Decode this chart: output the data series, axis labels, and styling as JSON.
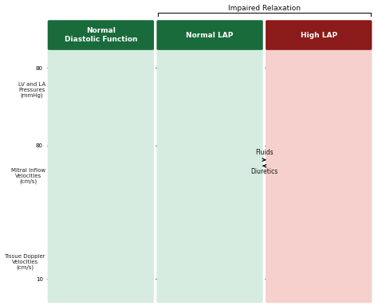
{
  "title_top": "Impaired Relaxation",
  "col_titles": [
    "Normal\nDiastolic Function",
    "Normal LAP",
    "High LAP"
  ],
  "col_bg_colors": [
    "#d6ece1",
    "#d6ece1",
    "#f5d0cc"
  ],
  "col_header_colors": [
    "#1a6b3c",
    "#1a6b3c",
    "#8b1a1a"
  ],
  "col_header_text_color": "#ffffff",
  "row_labels": [
    "LV and LA\nPressures\n(mmHg)",
    "Mitral Inflow\nVelocities\n(cm/s)",
    "Tissue Doppler\nVelocities\n(cm/s)"
  ],
  "teal_color": "#2a9d8f",
  "orange_color": "#e07b39",
  "lv_blue": "#2c3e7a",
  "la_pink": "#c9567a",
  "ecg_color": "#1a1a1a",
  "arrow_color": "#111111"
}
